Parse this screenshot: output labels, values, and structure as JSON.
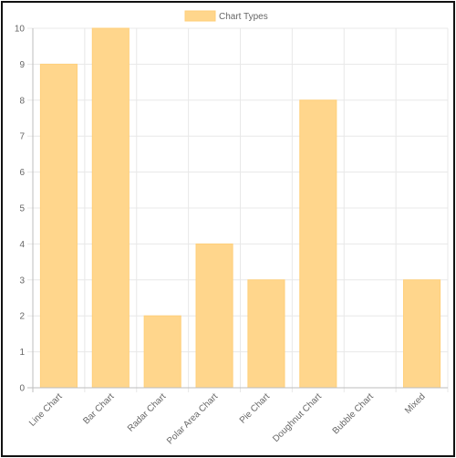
{
  "chart_data": {
    "type": "bar",
    "title": "",
    "xlabel": "",
    "ylabel": "",
    "categories": [
      "Line Chart",
      "Bar Chart",
      "Radar Chart",
      "Polar Area Chart",
      "Pie Chart",
      "Doughnut Chart",
      "Bubble Chart",
      "Mixed"
    ],
    "series": [
      {
        "name": "Chart Types",
        "values": [
          9,
          10,
          2,
          4,
          3,
          8,
          0,
          3
        ]
      }
    ],
    "ylim": [
      0,
      10
    ],
    "yticks": [
      0,
      1,
      2,
      3,
      4,
      5,
      6,
      7,
      8,
      9,
      10
    ],
    "grid": true,
    "legend_position": "top",
    "colors": {
      "bar_fill": "#ffd68c",
      "bar_stroke": "#ffcf7a",
      "grid": "#e8e8e8",
      "axis": "#bdbdbd"
    }
  }
}
